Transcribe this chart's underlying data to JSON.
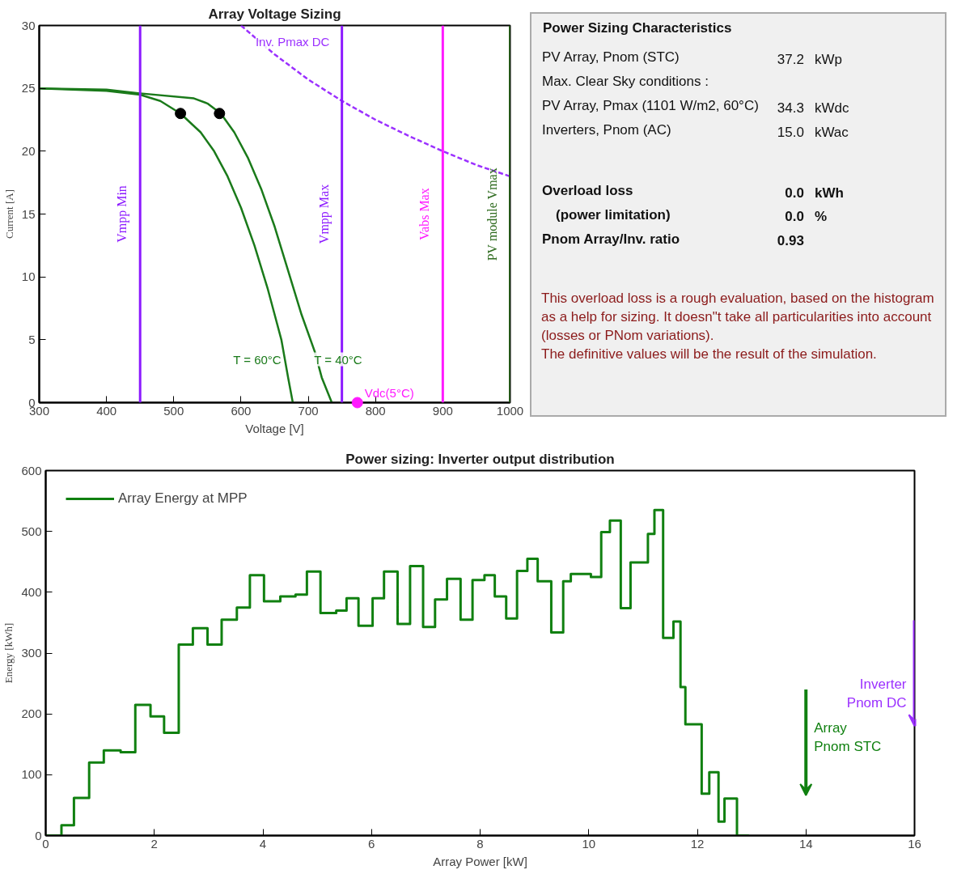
{
  "chart_data": [
    {
      "type": "line",
      "title": "Array Voltage Sizing",
      "xlabel": "Voltage [V]",
      "ylabel": "Current [A]",
      "xlim": [
        300,
        1000
      ],
      "ylim": [
        0,
        30
      ],
      "xticks": [
        300,
        400,
        500,
        600,
        700,
        800,
        900,
        1000
      ],
      "yticks": [
        0,
        5,
        10,
        15,
        20,
        25,
        30
      ],
      "grid": false,
      "legend": false,
      "series": [
        {
          "name": "T = 60°C",
          "color": "#1a7a1a",
          "x": [
            300,
            400,
            450,
            480,
            510,
            540,
            560,
            580,
            600,
            620,
            640,
            650,
            660,
            670,
            677
          ],
          "values": [
            25,
            24.8,
            24.5,
            24,
            23,
            21.5,
            20,
            18,
            15.5,
            12.5,
            9,
            7,
            5,
            2,
            0
          ]
        },
        {
          "name": "T = 40°C",
          "color": "#1a7a1a",
          "x": [
            300,
            400,
            450,
            530,
            550,
            570,
            590,
            610,
            630,
            650,
            670,
            690,
            710,
            720,
            735
          ],
          "values": [
            25,
            24.9,
            24.6,
            24.2,
            23.8,
            23,
            21.5,
            19.5,
            17,
            14,
            10.5,
            7,
            4,
            2,
            0
          ]
        },
        {
          "name": "Inv. Pmax DC",
          "color": "#9b30ff",
          "line_style": "dashed",
          "x": [
            600,
            650,
            700,
            750,
            800,
            850,
            900,
            950,
            1000
          ],
          "values": [
            30,
            27.7,
            25.7,
            24,
            22.5,
            21.2,
            20,
            18.9,
            18
          ]
        },
        {
          "type": "scatter",
          "marker": "circle",
          "color": "#000000",
          "x": [
            510,
            568
          ],
          "values": [
            23,
            23
          ]
        },
        {
          "type": "scatter",
          "marker": "circle",
          "name": "Vdc(5°C)",
          "color": "#ff1aff",
          "x": [
            773
          ],
          "values": [
            0
          ]
        }
      ],
      "ref_lines": [
        {
          "axis": "x",
          "value": 450,
          "label": "Vmpp Min",
          "color": "#8c1aff"
        },
        {
          "axis": "x",
          "value": 750,
          "label": "Vmpp Max",
          "color": "#8c1aff"
        },
        {
          "axis": "x",
          "value": 900,
          "label": "Vabs Max",
          "color": "#ff1aff"
        },
        {
          "axis": "x",
          "value": 1000,
          "label": "PV module Vmax",
          "color": "#2e6b1e"
        }
      ]
    },
    {
      "type": "other",
      "title": "Power Sizing Characteristics",
      "annotations": [
        "PV Array, Pnom (STC)\t37.2\tkWp",
        "Max. Clear Sky conditions :",
        "PV Array, Pmax (1101 W/m2, 60°C)\t34.3\tkWdc",
        "Inverters, Pnom (AC)\t15.0\tkWac",
        "Overload loss\t0.0\tkWh",
        "(power limitation)\t0.0\t%",
        "Pnom Array/Inv. ratio\t0.93\t",
        "This overload loss is a rough evaluation, based on the histogram as a help for sizing. It doesn\"t take all particularities into account (losses or PNom variations).",
        "The definitive values will be the result of the simulation."
      ]
    },
    {
      "type": "step",
      "title": "Power sizing: Inverter output distribution",
      "xlabel": "Array Power [kW]",
      "ylabel": "Energy [kWh]",
      "xlim": [
        0,
        16
      ],
      "ylim": [
        0,
        600
      ],
      "xticks": [
        0,
        2,
        4,
        6,
        8,
        10,
        12,
        14,
        16
      ],
      "yticks": [
        0,
        100,
        200,
        300,
        400,
        500,
        600
      ],
      "grid": false,
      "legend": "top left",
      "series": [
        {
          "name": "Array Energy at MPP",
          "color": "#108010",
          "x": [
            0,
            0.29,
            0.52,
            0.8,
            1.07,
            1.38,
            1.65,
            1.93,
            2.18,
            2.45,
            2.71,
            2.98,
            3.24,
            3.52,
            3.76,
            4.02,
            4.32,
            4.6,
            4.81,
            5.06,
            5.35,
            5.54,
            5.76,
            6.02,
            6.23,
            6.48,
            6.71,
            6.95,
            7.17,
            7.39,
            7.64,
            7.86,
            8.08,
            8.27,
            8.48,
            8.68,
            8.87,
            9.06,
            9.31,
            9.53,
            9.67,
            10.04,
            10.23,
            10.39,
            10.59,
            10.77,
            11.09,
            11.21,
            11.37,
            11.56,
            11.69,
            11.78,
            12.08,
            12.22,
            12.39,
            12.5,
            12.73,
            12.95
          ],
          "values": [
            0,
            17,
            62,
            120,
            140,
            137,
            215,
            196,
            169,
            314,
            341,
            314,
            355,
            375,
            428,
            385,
            393,
            396,
            434,
            366,
            370,
            390,
            345,
            390,
            434,
            348,
            443,
            343,
            388,
            422,
            355,
            420,
            428,
            393,
            357,
            435,
            455,
            418,
            334,
            418,
            430,
            425,
            499,
            518,
            374,
            449,
            496,
            535,
            325,
            352,
            244,
            183,
            69,
            104,
            23,
            61,
            0,
            0
          ]
        }
      ],
      "annotations": [
        "Array\nPnom STC",
        "Inverter\nPnom DC"
      ]
    }
  ]
}
